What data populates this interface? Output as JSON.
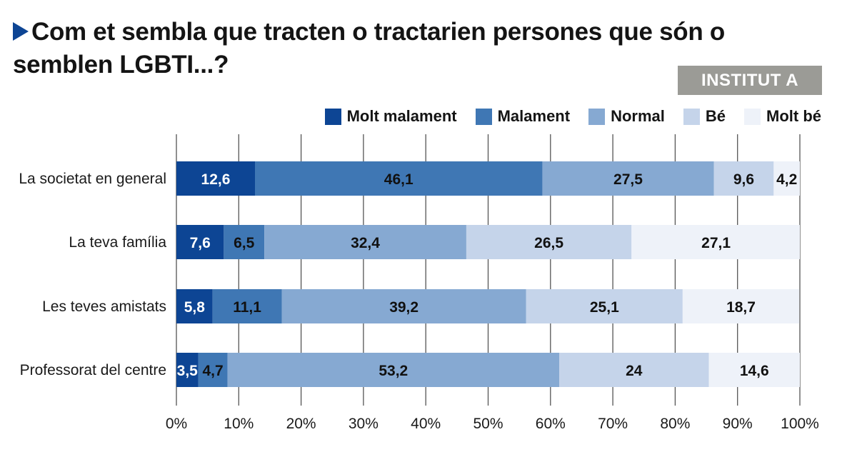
{
  "title": "Com et sembla que tracten o tractarien persones que són o semblen LGBTI...?",
  "badge": "INSTITUT A",
  "colors": {
    "title_marker": "#0d4594",
    "badge_bg": "#9b9b96",
    "gridline": "#555555"
  },
  "chart_data": {
    "type": "bar",
    "orientation": "horizontal",
    "stacked": true,
    "title": "Com et sembla que tracten o tractarien persones que són o semblen LGBTI...?",
    "categories": [
      "La societat en general",
      "La teva família",
      "Les teves amistats",
      "Professorat del centre"
    ],
    "series": [
      {
        "name": "Molt malament",
        "color": "#0d4594",
        "label_color": "#ffffff",
        "values": [
          12.6,
          7.6,
          5.8,
          3.5
        ],
        "labels": [
          "12,6",
          "7,6",
          "5,8",
          "3,5"
        ]
      },
      {
        "name": "Malament",
        "color": "#3f77b4",
        "label_color": "#111111",
        "values": [
          46.1,
          6.5,
          11.1,
          4.7
        ],
        "labels": [
          "46,1",
          "6,5",
          "11,1",
          "4,7"
        ]
      },
      {
        "name": "Normal",
        "color": "#86a9d2",
        "label_color": "#111111",
        "values": [
          27.5,
          32.4,
          39.2,
          53.2
        ],
        "labels": [
          "27,5",
          "32,4",
          "39,2",
          "53,2"
        ]
      },
      {
        "name": "Bé",
        "color": "#c5d4ea",
        "label_color": "#111111",
        "values": [
          9.6,
          26.5,
          25.1,
          24
        ],
        "labels": [
          "9,6",
          "26,5",
          "25,1",
          "24"
        ]
      },
      {
        "name": "Molt bé",
        "color": "#eef2f9",
        "label_color": "#111111",
        "values": [
          4.2,
          27.1,
          18.7,
          14.6
        ],
        "labels": [
          "4,2",
          "27,1",
          "18,7",
          "14,6"
        ]
      }
    ],
    "xlim": [
      0,
      100
    ],
    "xticks": [
      "0%",
      "10%",
      "20%",
      "30%",
      "40%",
      "50%",
      "60%",
      "70%",
      "80%",
      "90%",
      "100%"
    ],
    "grid": true,
    "legend_position": "top-right"
  }
}
